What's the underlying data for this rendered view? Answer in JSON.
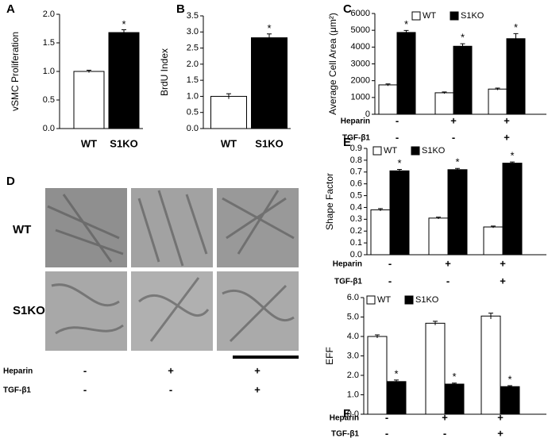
{
  "chart_data": [
    {
      "type": "bar",
      "panel_label": "A",
      "ylabel": "vSMC Proliferation",
      "categories": [
        "WT",
        "S1KO"
      ],
      "values": [
        1.0,
        1.68
      ],
      "errors": [
        0.02,
        0.05
      ],
      "colors": [
        "#ffffff",
        "#000000"
      ],
      "annotations": [
        null,
        "*"
      ],
      "ylim": [
        0,
        2.0
      ],
      "yticks": [
        {
          "value": 0,
          "label": "0.0"
        },
        0.5,
        {
          "value": 1,
          "label": "1.0"
        },
        1.5,
        {
          "value": 2,
          "label": "2.0"
        }
      ]
    },
    {
      "type": "bar",
      "panel_label": "B",
      "ylabel": "BrdU Index",
      "categories": [
        "WT",
        "S1KO"
      ],
      "values": [
        1.0,
        2.82
      ],
      "errors": [
        0.08,
        0.12
      ],
      "colors": [
        "#ffffff",
        "#000000"
      ],
      "annotations": [
        null,
        "*"
      ],
      "ylim": [
        0,
        3.5
      ],
      "yticks": [
        {
          "value": 0,
          "label": "0.0"
        },
        0.5,
        {
          "value": 1,
          "label": "1.0"
        },
        1.5,
        {
          "value": 2,
          "label": "2.0"
        },
        2.5,
        {
          "value": 3,
          "label": "3.0"
        },
        3.5
      ]
    },
    {
      "type": "grouped-bar",
      "panel_label": "C",
      "ylabel": "Average Cell Area (μm²)",
      "series": [
        {
          "name": "WT",
          "color": "#ffffff",
          "values": [
            1750,
            1280,
            1500
          ],
          "errors": [
            60,
            50,
            60
          ]
        },
        {
          "name": "S1KO",
          "color": "#000000",
          "values": [
            4870,
            4050,
            4500
          ],
          "errors": [
            120,
            150,
            300
          ],
          "annotations": [
            "*",
            "*",
            "*"
          ]
        }
      ],
      "conditions": [
        {
          "name": "Heparin",
          "values": [
            "-",
            "+",
            "+"
          ]
        },
        {
          "name": "TGF-β1",
          "values": [
            "-",
            "-",
            "+"
          ]
        }
      ],
      "ylim": [
        0,
        6000
      ],
      "yticks": [
        0,
        1000,
        2000,
        3000,
        4000,
        5000,
        6000
      ],
      "legend": "top"
    },
    {
      "type": "grouped-bar",
      "panel_label": "E",
      "ylabel": "Shape Factor",
      "series": [
        {
          "name": "WT",
          "color": "#ffffff",
          "values": [
            0.38,
            0.31,
            0.235
          ],
          "errors": [
            0.01,
            0.008,
            0.008
          ]
        },
        {
          "name": "S1KO",
          "color": "#000000",
          "values": [
            0.71,
            0.72,
            0.775
          ],
          "errors": [
            0.012,
            0.01,
            0.01
          ],
          "annotations": [
            "*",
            "*",
            "*"
          ]
        }
      ],
      "conditions": [
        {
          "name": "Heparin",
          "values": [
            "-",
            "+",
            "+"
          ]
        },
        {
          "name": "TGF-β1",
          "values": [
            "-",
            "-",
            "+"
          ]
        }
      ],
      "ylim": [
        0,
        0.9
      ],
      "yticks": [
        {
          "value": 0,
          "label": "0.0"
        },
        0.1,
        0.2,
        0.3,
        0.4,
        0.5,
        0.6,
        0.7,
        0.8,
        0.9
      ],
      "legend": "top"
    },
    {
      "type": "grouped-bar",
      "panel_label": "F",
      "ylabel": "EFF",
      "series": [
        {
          "name": "WT",
          "color": "#ffffff",
          "values": [
            4.0,
            4.68,
            5.05
          ],
          "errors": [
            0.08,
            0.1,
            0.15
          ]
        },
        {
          "name": "S1KO",
          "color": "#000000",
          "values": [
            1.68,
            1.55,
            1.42
          ],
          "errors": [
            0.08,
            0.05,
            0.05
          ],
          "annotations": [
            "*",
            "*",
            "*"
          ]
        }
      ],
      "conditions": [
        {
          "name": "Heparin",
          "values": [
            "-",
            "+",
            "+"
          ]
        },
        {
          "name": "TGF-β1",
          "values": [
            "-",
            "-",
            "+"
          ]
        }
      ],
      "ylim": [
        0,
        6.0
      ],
      "yticks": [
        {
          "value": 0,
          "label": "0.0"
        },
        {
          "value": 1,
          "label": "1.0"
        },
        {
          "value": 2,
          "label": "2.0"
        },
        {
          "value": 3,
          "label": "3.0"
        },
        {
          "value": 4,
          "label": "4.0"
        },
        {
          "value": 5,
          "label": "5.0"
        },
        {
          "value": 6,
          "label": "6.0"
        }
      ],
      "legend": "top"
    }
  ],
  "panel_d": {
    "panel_label": "D",
    "rows": [
      "WT",
      "S1KO"
    ],
    "conditions": [
      {
        "name": "Heparin",
        "values": [
          "-",
          "+",
          "+"
        ]
      },
      {
        "name": "TGF-β1",
        "values": [
          "-",
          "-",
          "+"
        ]
      }
    ]
  }
}
